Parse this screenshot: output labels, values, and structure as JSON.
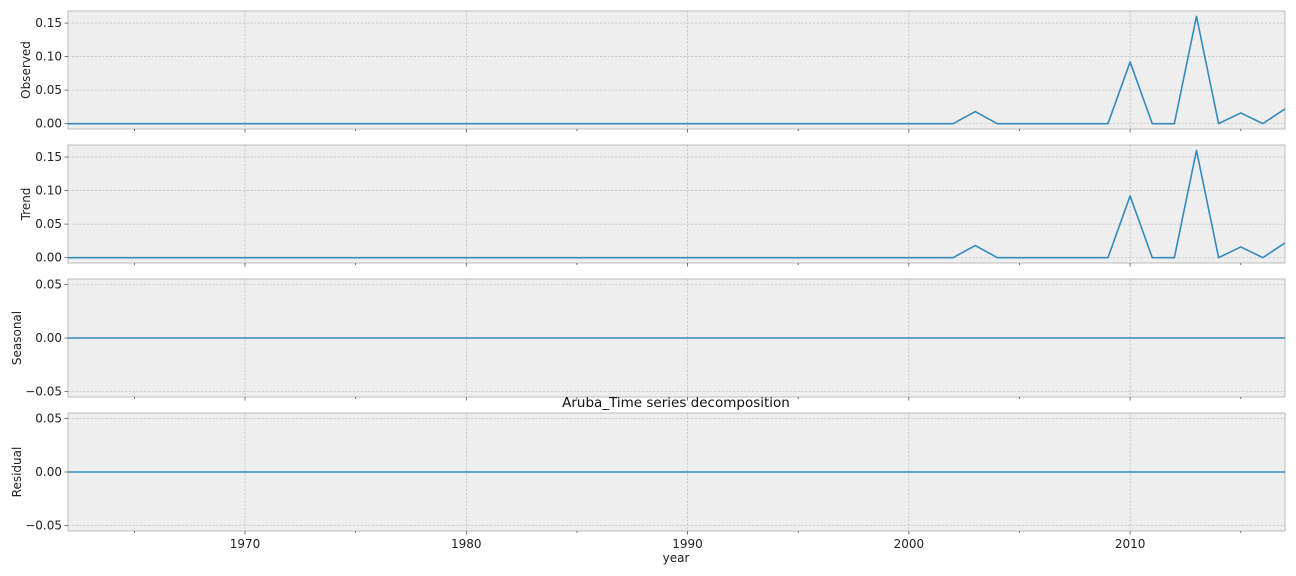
{
  "chart_data": {
    "type": "line",
    "title": "Aruba_Time series decomposition",
    "xlabel": "year",
    "xlim": [
      1962,
      2017
    ],
    "x_ticks": [
      "1970",
      "1980",
      "1990",
      "2000",
      "2010"
    ],
    "line_color": "#348abd",
    "grid": true,
    "x": [
      1962,
      1963,
      1964,
      1965,
      1966,
      1967,
      1968,
      1969,
      1970,
      1971,
      1972,
      1973,
      1974,
      1975,
      1976,
      1977,
      1978,
      1979,
      1980,
      1981,
      1982,
      1983,
      1984,
      1985,
      1986,
      1987,
      1988,
      1989,
      1990,
      1991,
      1992,
      1993,
      1994,
      1995,
      1996,
      1997,
      1998,
      1999,
      2000,
      2001,
      2002,
      2003,
      2004,
      2005,
      2006,
      2007,
      2008,
      2009,
      2010,
      2011,
      2012,
      2013,
      2014,
      2015,
      2016,
      2017
    ],
    "panels": [
      {
        "ylabel": "Observed",
        "ylim": [
          -0.008,
          0.168
        ],
        "y_ticks": [
          "0.00",
          "0.05",
          "0.10",
          "0.15"
        ],
        "y_tick_values": [
          0,
          0.05,
          0.1,
          0.15
        ],
        "values": [
          0,
          0,
          0,
          0,
          0,
          0,
          0,
          0,
          0,
          0,
          0,
          0,
          0,
          0,
          0,
          0,
          0,
          0,
          0,
          0,
          0,
          0,
          0,
          0,
          0,
          0,
          0,
          0,
          0,
          0,
          0,
          0,
          0,
          0,
          0,
          0,
          0,
          0,
          0,
          0,
          0,
          0.018,
          0,
          0,
          0,
          0,
          0,
          0,
          0.092,
          0,
          0,
          0.16,
          0,
          0.016,
          0,
          0.022
        ]
      },
      {
        "ylabel": "Trend",
        "ylim": [
          -0.008,
          0.168
        ],
        "y_ticks": [
          "0.00",
          "0.05",
          "0.10",
          "0.15"
        ],
        "y_tick_values": [
          0,
          0.05,
          0.1,
          0.15
        ],
        "values": [
          0,
          0,
          0,
          0,
          0,
          0,
          0,
          0,
          0,
          0,
          0,
          0,
          0,
          0,
          0,
          0,
          0,
          0,
          0,
          0,
          0,
          0,
          0,
          0,
          0,
          0,
          0,
          0,
          0,
          0,
          0,
          0,
          0,
          0,
          0,
          0,
          0,
          0,
          0,
          0,
          0,
          0.018,
          0,
          0,
          0,
          0,
          0,
          0,
          0.092,
          0,
          0,
          0.16,
          0,
          0.016,
          0,
          0.022
        ]
      },
      {
        "ylabel": "Seasonal",
        "ylim": [
          -0.055,
          0.055
        ],
        "y_ticks": [
          "0.05",
          "0.00",
          "−0.05"
        ],
        "y_tick_values": [
          0.05,
          0,
          -0.05
        ],
        "values": [
          0,
          0,
          0,
          0,
          0,
          0,
          0,
          0,
          0,
          0,
          0,
          0,
          0,
          0,
          0,
          0,
          0,
          0,
          0,
          0,
          0,
          0,
          0,
          0,
          0,
          0,
          0,
          0,
          0,
          0,
          0,
          0,
          0,
          0,
          0,
          0,
          0,
          0,
          0,
          0,
          0,
          0,
          0,
          0,
          0,
          0,
          0,
          0,
          0,
          0,
          0,
          0,
          0,
          0,
          0,
          0
        ]
      },
      {
        "ylabel": "Residual",
        "ylim": [
          -0.055,
          0.055
        ],
        "y_ticks": [
          "0.05",
          "0.00",
          "−0.05"
        ],
        "y_tick_values": [
          0.05,
          0,
          -0.05
        ],
        "values": [
          0,
          0,
          0,
          0,
          0,
          0,
          0,
          0,
          0,
          0,
          0,
          0,
          0,
          0,
          0,
          0,
          0,
          0,
          0,
          0,
          0,
          0,
          0,
          0,
          0,
          0,
          0,
          0,
          0,
          0,
          0,
          0,
          0,
          0,
          0,
          0,
          0,
          0,
          0,
          0,
          0,
          0,
          0,
          0,
          0,
          0,
          0,
          0,
          0,
          0,
          0,
          0,
          0,
          0,
          0,
          0
        ]
      }
    ]
  }
}
